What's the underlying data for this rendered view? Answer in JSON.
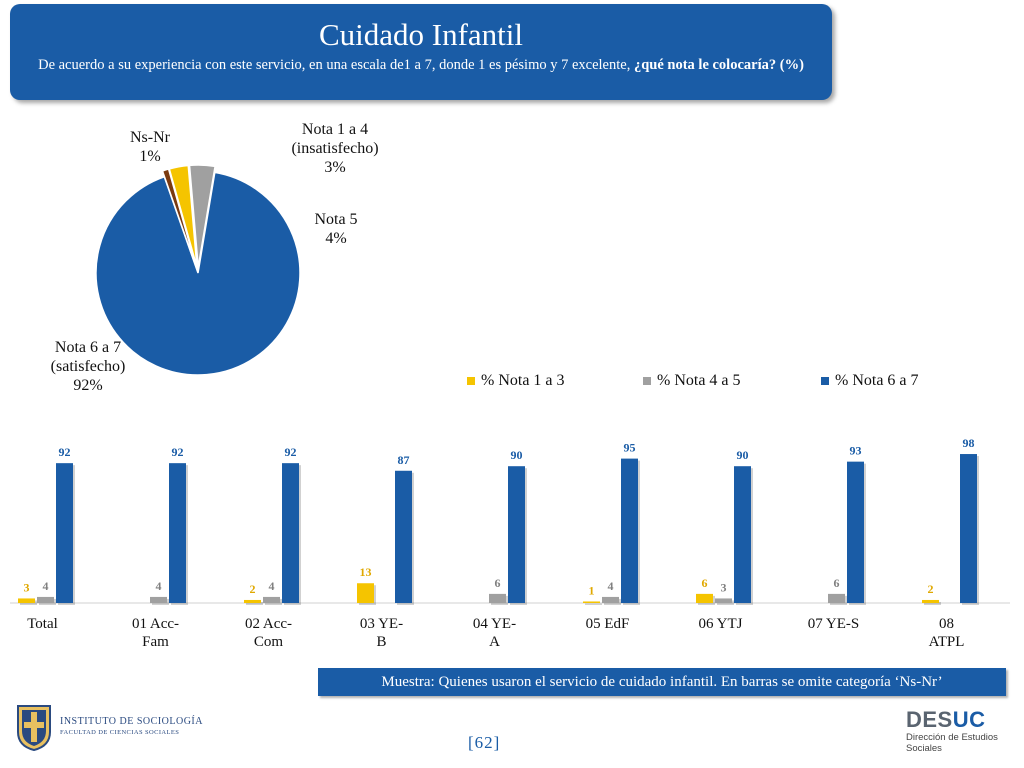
{
  "header": {
    "title": "Cuidado Infantil",
    "subtitle_plain": "De acuerdo a su experiencia con este servicio, en una escala de1 a 7, donde 1 es pésimo y 7 excelente, ",
    "subtitle_bold": "¿qué nota le colocaría? (%)"
  },
  "chart_data": [
    {
      "type": "pie",
      "slices": [
        {
          "label_line1": "Nota 6 a 7",
          "label_line2": "(satisfecho)",
          "value": 92,
          "value_label": "92%",
          "color": "#1a5ca6"
        },
        {
          "label_line1": "Ns-Nr",
          "label_line2": "",
          "value": 1,
          "value_label": "1%",
          "color": "#7a3a10"
        },
        {
          "label_line1": "Nota 1 a 4",
          "label_line2": "(insatisfecho)",
          "value": 3,
          "value_label": "3%",
          "color": "#f5c400"
        },
        {
          "label_line1": "Nota 5",
          "label_line2": "",
          "value": 4,
          "value_label": "4%",
          "color": "#a0a0a0"
        }
      ]
    },
    {
      "type": "bar",
      "categories": [
        {
          "line1": "Total",
          "line2": ""
        },
        {
          "line1": "01 Acc-",
          "line2": "Fam"
        },
        {
          "line1": "02 Acc-",
          "line2": "Com"
        },
        {
          "line1": "03 YE-",
          "line2": "B"
        },
        {
          "line1": "04 YE-",
          "line2": "A"
        },
        {
          "line1": "05 EdF",
          "line2": ""
        },
        {
          "line1": "06 YTJ",
          "line2": ""
        },
        {
          "line1": "07 YE-S",
          "line2": ""
        },
        {
          "line1": "08",
          "line2": "ATPL"
        }
      ],
      "series": [
        {
          "name": "% Nota 1 a 3",
          "color": "#f5c400",
          "label_color": "#e0a800",
          "values": [
            3,
            0,
            2,
            13,
            0,
            1,
            6,
            0,
            2
          ]
        },
        {
          "name": "% Nota 4 a 5",
          "color": "#a0a0a0",
          "label_color": "#808080",
          "values": [
            4,
            4,
            4,
            0,
            6,
            4,
            3,
            6,
            0
          ]
        },
        {
          "name": "% Nota 6 a 7",
          "color": "#1a5ca6",
          "label_color": "#1a5ca6",
          "values": [
            92,
            92,
            92,
            87,
            90,
            95,
            90,
            93,
            98
          ]
        }
      ],
      "ylim": [
        0,
        100
      ],
      "legend_position": "top"
    }
  ],
  "footer_note": "Muestra: Quienes usaron el servicio de cuidado infantil. En barras se omite categoría ‘Ns-Nr’",
  "page_number": "[62]",
  "logo_left": {
    "line1": "INSTITUTO DE SOCIOLOGÍA",
    "line2": "FACULTAD DE CIENCIAS SOCIALES"
  },
  "logo_right": {
    "brand_a": "DES",
    "brand_b": "UC",
    "sub1": "Dirección de Estudios",
    "sub2": "Sociales"
  }
}
